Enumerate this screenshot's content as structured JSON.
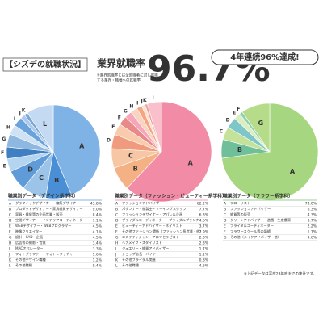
{
  "header": {
    "title": "【シズデの就職状況】",
    "rate_label": "業界就職率",
    "note": [
      "※業界就職率とは全就職者に対し就職",
      "する業界・職種への就職率"
    ],
    "rate": "96.7%",
    "badge": "4年連続96%達成!"
  },
  "footnote": "※上記データは平成23年度までの集計です。",
  "chart_data": [
    {
      "type": "pie",
      "title": "職業別データ（デザイン系学科）",
      "title_color": "#1f6fc0",
      "letters": [
        "A",
        "B",
        "C",
        "D",
        "E",
        "F",
        "G",
        "H",
        "I",
        "J",
        "K",
        "L"
      ],
      "categories": [
        "グラフィックデザイナー・編集デザイナー",
        "プロダクトデザイナー・家具雑貨デザイナー",
        "家具・雑貨等の企画営業・販売",
        "空間デザイナー・インテリアコーディネーター",
        "WEBデザイナー・WEBプログラマー",
        "映像クリエイター",
        "設計・CAD・企画",
        "広告等の撮影・営業",
        "MACオペレーター",
        "フォトグラファー・フォトレタッチャー",
        "その他デザイン職種",
        "その他職種"
      ],
      "values": [
        43.8,
        9.0,
        8.4,
        7.1,
        4.5,
        4.1,
        4.5,
        3.4,
        3.3,
        1.6,
        1.2,
        9.4
      ],
      "value_labels": [
        "43.8%",
        "9.0%",
        "8.4%",
        "7.1%",
        "4.5%",
        "4.1%",
        "4.5%",
        "3.4%",
        "3.3%",
        "1.6%",
        "1.2%",
        "9.4%"
      ],
      "colors": [
        "#7fb2e5",
        "#4a8fd6",
        "#9cc3e8",
        "#5e9bd8",
        "#b4d4ef",
        "#3f7fc2",
        "#8fb8e0",
        "#cfe2f3",
        "#6aa3dc",
        "#a9c9ee",
        "#7aa6d0",
        "#c4daf3"
      ]
    },
    {
      "type": "pie",
      "title": "職業別データ（ファッション・ビューティー系学科）",
      "title_color": "#e0407a",
      "letters": [
        "A",
        "B",
        "C",
        "D",
        "E",
        "F",
        "G",
        "H",
        "I",
        "J",
        "K",
        "L"
      ],
      "categories": [
        "ファッションアドバイザー",
        "パタンナー・縫製士・ソーイングスタッフ",
        "ファッションデザイナー・アパレル企画",
        "ブライダルコーディネーター・ブライダルプランナー",
        "ビューティーアドバイザー・ネイリスト",
        "その他ファッション関係（ファッション系営業・他）",
        "エステティシャン・アロマセラピスト",
        "ヘアメイク・スタイリスト",
        "ジュエリー・雑貨アドバイザー",
        "ショップ店長・バイヤー",
        "その他ブライダル関連",
        "その他職種"
      ],
      "values": [
        62.2,
        7.7,
        6.3,
        4.6,
        3.7,
        2.9,
        2.3,
        2.3,
        1.7,
        1.1,
        0.8,
        4.6
      ],
      "value_labels": [
        "62.2%",
        "7.7%",
        "6.3%",
        "4.6%",
        "3.7%",
        "2.9%",
        "2.3%",
        "2.3%",
        "1.7%",
        "1.1%",
        "0.8%",
        "4.6%"
      ],
      "colors": [
        "#f28ca6",
        "#f4b183",
        "#f7c6a5",
        "#f09a7e",
        "#f8cbad",
        "#e88a8a",
        "#f6a6b8",
        "#fad4c0",
        "#f4a582",
        "#fbe0d0",
        "#ee9fa0",
        "#f9c0cb"
      ]
    },
    {
      "type": "pie",
      "title": "職業別データ（フラワー系学科）",
      "title_color": "#3f9e3a",
      "letters": [
        "A",
        "B",
        "C",
        "D",
        "E",
        "F",
        "G"
      ],
      "categories": [
        "フローリスト",
        "ファッションアドバイザー",
        "雑貨等の販売",
        "グリーンアドバイザー・造園・生産農家",
        "ブライダルコーディネーター",
        "フラワースクール等の講師",
        "その他（メイクアドバイザー他）"
      ],
      "values": [
        73.0,
        6.3,
        4.3,
        3.7,
        2.2,
        1.1,
        9.6
      ],
      "value_labels": [
        "73.0%",
        "6.3%",
        "4.3%",
        "3.7%",
        "2.2%",
        "1.1%",
        "9.6%"
      ],
      "colors": [
        "#a6d67f",
        "#6fbf9a",
        "#c5e29b",
        "#7fc6c8",
        "#dbeec0",
        "#8fd0b0",
        "#b6dc8a"
      ]
    }
  ]
}
